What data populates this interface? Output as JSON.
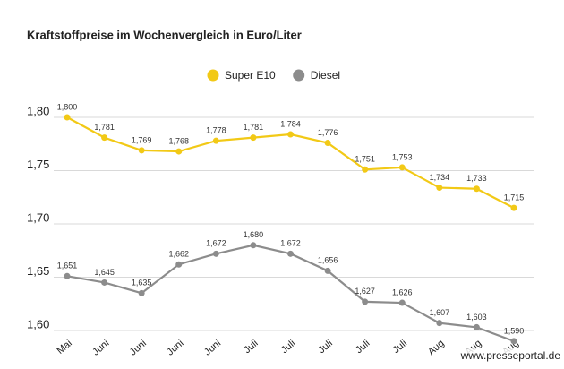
{
  "chart_data": {
    "type": "line",
    "title": "Kraftstoffpreise im Wochenvergleich in Euro/Liter",
    "categories": [
      "Mai",
      "Juni",
      "Juni",
      "Juni",
      "Juni",
      "Juli",
      "Juli",
      "Juli",
      "Juli",
      "Juli",
      "Aug",
      "Aug",
      "Aug"
    ],
    "series": [
      {
        "name": "Super E10",
        "color": "#f2c916",
        "values": [
          1.8,
          1.781,
          1.769,
          1.768,
          1.778,
          1.781,
          1.784,
          1.776,
          1.751,
          1.753,
          1.734,
          1.733,
          1.715
        ],
        "value_labels": [
          "1,800",
          "1,781",
          "1,769",
          "1,768",
          "1,778",
          "1,781",
          "1,784",
          "1,776",
          "1,751",
          "1,753",
          "1,734",
          "1,733",
          "1,715"
        ]
      },
      {
        "name": "Diesel",
        "color": "#8c8c8c",
        "values": [
          1.651,
          1.645,
          1.635,
          1.662,
          1.672,
          1.68,
          1.672,
          1.656,
          1.627,
          1.626,
          1.607,
          1.603,
          1.59
        ],
        "value_labels": [
          "1,651",
          "1,645",
          "1,635",
          "1,662",
          "1,672",
          "1,680",
          "1,672",
          "1,656",
          "1,627",
          "1,626",
          "1,607",
          "1,603",
          "1,590"
        ]
      }
    ],
    "ylim": [
      1.58,
      1.82
    ],
    "yticks": [
      {
        "value": 1.6,
        "label": "1,60"
      },
      {
        "value": 1.65,
        "label": "1,65"
      },
      {
        "value": 1.7,
        "label": "1,70"
      },
      {
        "value": 1.75,
        "label": "1,75"
      },
      {
        "value": 1.8,
        "label": "1,80"
      }
    ],
    "grid": true,
    "legend": "top",
    "watermark": "www.presseportal.de"
  }
}
